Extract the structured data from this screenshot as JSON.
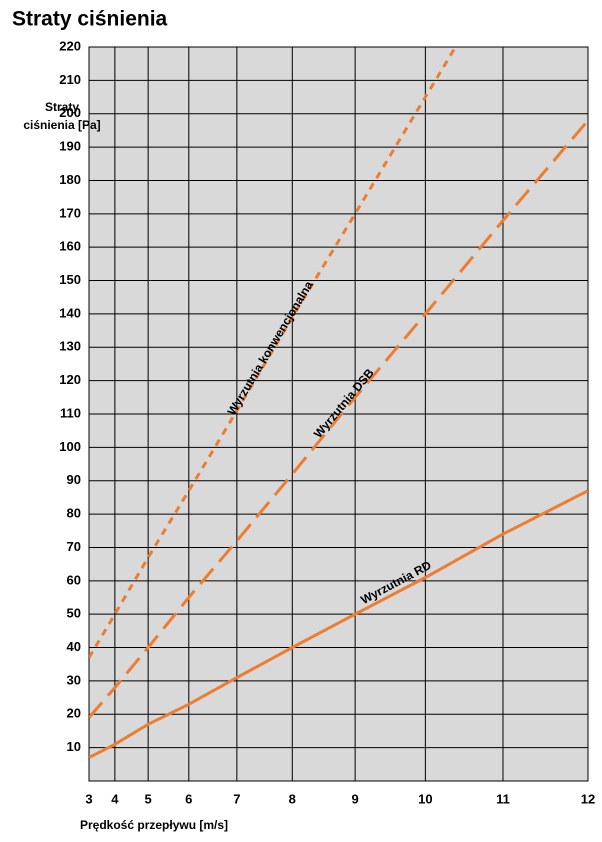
{
  "chart_data": {
    "type": "line",
    "title": "Straty ciśnienia",
    "x_label": "Prędkość przepływu [m/s]",
    "y_label": "Straty ciśnienia [Pa]",
    "x_scale": "square",
    "xlim": [
      3,
      12
    ],
    "xticks": [
      3,
      4,
      5,
      6,
      7,
      8,
      9,
      10,
      11,
      12
    ],
    "ylim": [
      0,
      220
    ],
    "yticks": [
      10,
      20,
      30,
      40,
      50,
      60,
      70,
      80,
      90,
      100,
      110,
      120,
      130,
      140,
      150,
      160,
      170,
      180,
      190,
      200,
      210,
      220
    ],
    "grid": true,
    "series": [
      {
        "name": "Wyrzutnia konwencjonalna",
        "color": "#ed7d31",
        "dash": "short",
        "x": [
          3,
          4,
          5,
          6,
          7,
          8,
          9,
          10,
          10.4
        ],
        "values": [
          37,
          50,
          67,
          87,
          111,
          139,
          170,
          205,
          220
        ]
      },
      {
        "name": "Wyrzutnia DSB",
        "color": "#ed7d31",
        "dash": "long",
        "x": [
          3,
          4,
          5,
          6,
          7,
          8,
          9,
          10,
          11,
          12
        ],
        "values": [
          19,
          28,
          40,
          55,
          72,
          92,
          115,
          140,
          168,
          198
        ]
      },
      {
        "name": "Wyrzutnia RD",
        "color": "#ed7d31",
        "dash": "solid",
        "x": [
          3,
          4,
          5,
          6,
          7,
          8,
          9,
          10,
          11,
          12
        ],
        "values": [
          7,
          11,
          17,
          23,
          31,
          40,
          50,
          61,
          74,
          87
        ]
      }
    ]
  }
}
